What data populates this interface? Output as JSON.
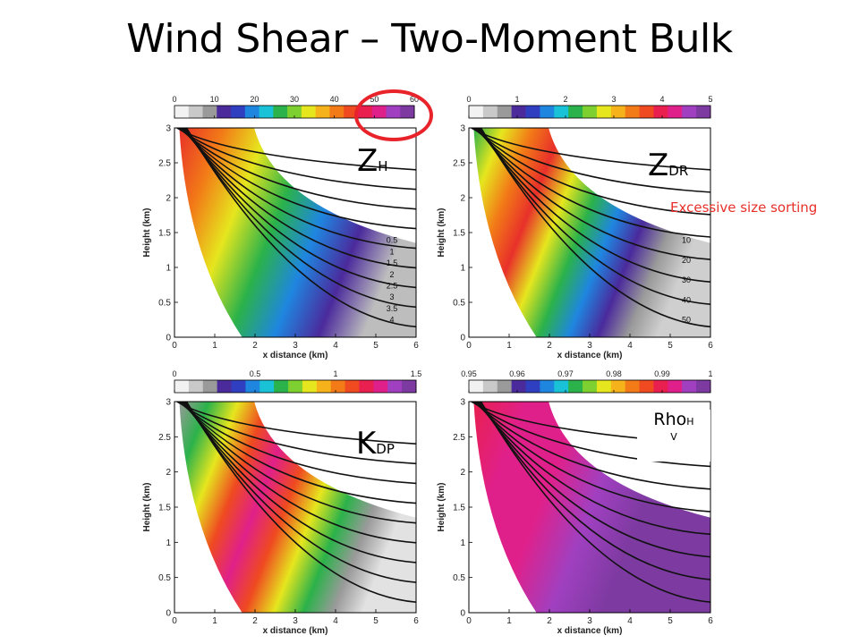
{
  "title": "Wind Shear – Two-Moment Bulk",
  "annotation": "Excessive size sorting",
  "panel_labels": {
    "zh": {
      "main": "Z",
      "sub": "H"
    },
    "zdr": {
      "main": "Z",
      "sub": "DR"
    },
    "kdp": {
      "main": "K",
      "sub": "DP"
    },
    "rhohv": {
      "main": "Rho",
      "sub": "H",
      "sub2": "V"
    }
  },
  "highlight_color": "#e8232a",
  "colormap": [
    "#f2f2f2",
    "#c9c9c9",
    "#9a9a9a",
    "#4b2a9c",
    "#2f3fc0",
    "#1f86e0",
    "#19c2d6",
    "#2bb24a",
    "#7dd030",
    "#e6e61e",
    "#f5b21a",
    "#f27a17",
    "#ef4a20",
    "#e81f4f",
    "#e0208a",
    "#a040c0",
    "#7d3aa0"
  ],
  "chart_data": [
    {
      "id": "zh",
      "type": "heatmap",
      "colorbar": {
        "min": 0,
        "max": 60,
        "ticks": [
          "0",
          "10",
          "20",
          "30",
          "40",
          "50",
          "60"
        ]
      },
      "xlabel": "x distance (km)",
      "ylabel": "Height (km)",
      "xlim": [
        0,
        6
      ],
      "ylim": [
        0,
        3
      ],
      "xticks": [
        "0",
        "1",
        "2",
        "3",
        "4",
        "5",
        "6"
      ],
      "yticks": [
        "0",
        "0.5",
        "1",
        "1.5",
        "2",
        "2.5",
        "3"
      ],
      "contour_labels": [
        "0.5",
        "1",
        "1.5",
        "2",
        "2.5",
        "3",
        "3.5",
        "4"
      ]
    },
    {
      "id": "zdr",
      "type": "heatmap",
      "colorbar": {
        "min": 0,
        "max": 5,
        "ticks": [
          "0",
          "1",
          "2",
          "3",
          "4",
          "5"
        ]
      },
      "xlabel": "x distance (km)",
      "ylabel": "Height (km)",
      "xlim": [
        0,
        6
      ],
      "ylim": [
        0,
        3
      ],
      "xticks": [
        "0",
        "1",
        "2",
        "3",
        "4",
        "5",
        "6"
      ],
      "yticks": [
        "0",
        "0.5",
        "1",
        "1.5",
        "2",
        "2.5",
        "3"
      ],
      "contour_labels": [
        "10",
        "20",
        "30",
        "40",
        "50"
      ]
    },
    {
      "id": "kdp",
      "type": "heatmap",
      "colorbar": {
        "min": 0,
        "max": 1.5,
        "ticks": [
          "0",
          "0.5",
          "1",
          "1.5"
        ]
      },
      "xlabel": "x distance (km)",
      "ylabel": "Height (km)",
      "xlim": [
        0,
        6
      ],
      "ylim": [
        0,
        3
      ],
      "xticks": [
        "0",
        "1",
        "2",
        "3",
        "4",
        "5",
        "6"
      ],
      "yticks": [
        "0",
        "0.5",
        "1",
        "1.5",
        "2",
        "2.5",
        "3"
      ]
    },
    {
      "id": "rhohv",
      "type": "heatmap",
      "colorbar": {
        "min": 0.95,
        "max": 1,
        "ticks": [
          "0.95",
          "0.96",
          "0.97",
          "0.98",
          "0.99",
          "1"
        ]
      },
      "xlabel": "x distance (km)",
      "ylabel": "Height (km)",
      "xlim": [
        0,
        6
      ],
      "ylim": [
        0,
        3
      ],
      "xticks": [
        "0",
        "1",
        "2",
        "3",
        "4",
        "5",
        "6"
      ],
      "yticks": [
        "0",
        "0.5",
        "1",
        "1.5",
        "2",
        "2.5",
        "3"
      ]
    }
  ]
}
